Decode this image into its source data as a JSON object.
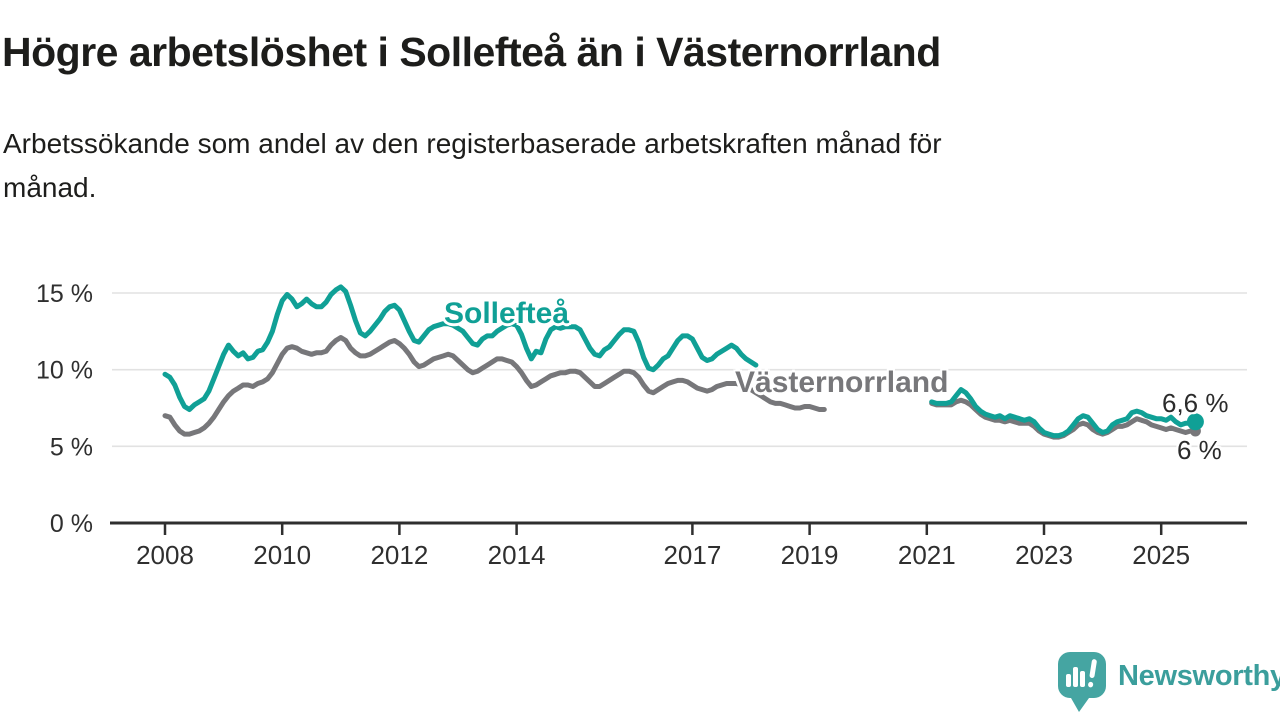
{
  "header": {
    "title": "Högre arbetslöshet i Sollefteå än i Västernorrland",
    "subtitle_line1": "Arbetssökande som andel av den registerbaserade arbetskraften månad för",
    "subtitle_line2": "månad."
  },
  "footer": {
    "brand": "Newsworthy"
  },
  "colors": {
    "solleftea": "#10A096",
    "vasternorrland": "#77777A",
    "grid": "#e2e2e2",
    "axis": "#2f2f2f",
    "tick_text": "#2f2f2f",
    "logo_teal": "#45a5a2"
  },
  "chart_data": {
    "type": "line",
    "title": "Högre arbetslöshet i Sollefteå än i Västernorrland",
    "subtitle": "Arbetssökande som andel av den registerbaserade arbetskraften månad för månad.",
    "unit": "%",
    "grid": "horizontal",
    "legend_position": "inline-labels",
    "xlim": [
      2007.35,
      2026.45
    ],
    "ylim": [
      0,
      16.5
    ],
    "x_tick_years": [
      2008,
      2010,
      2012,
      2014,
      2017,
      2019,
      2021,
      2023,
      2025
    ],
    "x_tick_labels": [
      "2008",
      "2010",
      "2012",
      "2014",
      "2017",
      "2019",
      "2021",
      "2023",
      "2025"
    ],
    "y_tick_values": [
      0,
      5,
      10,
      15
    ],
    "y_tick_labels": [
      "0 %",
      "5 %",
      "10 %",
      "15 %"
    ],
    "series": [
      {
        "name": "Sollefteå",
        "color": "#10A096",
        "end_label": "6,6 %",
        "end_dot": true,
        "segments": [
          {
            "start": 2008.0,
            "monthly_values": [
              9.7,
              9.5,
              9.0,
              8.2,
              7.6,
              7.4,
              7.7,
              7.9,
              8.1,
              8.6,
              9.4,
              10.2,
              11.0,
              11.6,
              11.2,
              10.9,
              11.1,
              10.7,
              10.8,
              11.2,
              11.3,
              11.8,
              12.5,
              13.6,
              14.5,
              14.9,
              14.6,
              14.1,
              14.3,
              14.6,
              14.3,
              14.1,
              14.1,
              14.4,
              14.9,
              15.2,
              15.4,
              15.1,
              14.2,
              13.2,
              12.4,
              12.2,
              12.5,
              12.9,
              13.3,
              13.8,
              14.1,
              14.2,
              13.9,
              13.2,
              12.5,
              11.9,
              11.8,
              12.2,
              12.6,
              12.8,
              12.9,
              13.0,
              13.0,
              12.9,
              12.7,
              12.5,
              12.1,
              11.7,
              11.6,
              12.0,
              12.2,
              12.2,
              12.5,
              12.7,
              12.9,
              13.0,
              12.9,
              12.3,
              11.4,
              10.7,
              11.2,
              11.1,
              12.0,
              12.6,
              12.8,
              12.7,
              12.8,
              12.8,
              12.8,
              12.6,
              12.0,
              11.4,
              11.0,
              10.9,
              11.3,
              11.5,
              11.9,
              12.3,
              12.6,
              12.6,
              12.5,
              11.8,
              10.8,
              10.1,
              10.0,
              10.3,
              10.7,
              10.9,
              11.4,
              11.9,
              12.2,
              12.2,
              12.0,
              11.4,
              10.8,
              10.6,
              10.7,
              11.0,
              11.2,
              11.4,
              11.6,
              11.4,
              11.0,
              10.7,
              10.5,
              10.3
            ]
          },
          {
            "start": 2021.083,
            "monthly_values": [
              7.9,
              7.8,
              7.8,
              7.8,
              7.9,
              8.3,
              8.7,
              8.5,
              8.1,
              7.6,
              7.3,
              7.1,
              7.0,
              6.9,
              7.0,
              6.8,
              7.0,
              6.9,
              6.8,
              6.7,
              6.8,
              6.6,
              6.2,
              5.9,
              5.8,
              5.7,
              5.7,
              5.8,
              6.0,
              6.4,
              6.8,
              7.0,
              6.9,
              6.5,
              6.1,
              5.9,
              6.0,
              6.4,
              6.6,
              6.7,
              6.8,
              7.2,
              7.3,
              7.2,
              7.0,
              6.9,
              6.8,
              6.8,
              6.7,
              6.9,
              6.6,
              6.4,
              6.5,
              6.5,
              6.6
            ]
          }
        ]
      },
      {
        "name": "Västernorrland",
        "color": "#77777A",
        "end_label": "6 %",
        "end_dot": true,
        "segments": [
          {
            "start": 2008.0,
            "monthly_values": [
              7.0,
              6.9,
              6.4,
              6.0,
              5.8,
              5.8,
              5.9,
              6.0,
              6.2,
              6.5,
              6.9,
              7.4,
              7.9,
              8.3,
              8.6,
              8.8,
              9.0,
              9.0,
              8.9,
              9.1,
              9.2,
              9.4,
              9.8,
              10.4,
              11.0,
              11.4,
              11.5,
              11.4,
              11.2,
              11.1,
              11.0,
              11.1,
              11.1,
              11.2,
              11.6,
              11.9,
              12.1,
              11.9,
              11.4,
              11.1,
              10.9,
              10.9,
              11.0,
              11.2,
              11.4,
              11.6,
              11.8,
              11.9,
              11.7,
              11.4,
              11.0,
              10.5,
              10.2,
              10.3,
              10.5,
              10.7,
              10.8,
              10.9,
              11.0,
              10.9,
              10.6,
              10.3,
              10.0,
              9.8,
              9.9,
              10.1,
              10.3,
              10.5,
              10.7,
              10.7,
              10.6,
              10.5,
              10.2,
              9.8,
              9.3,
              8.9,
              9.0,
              9.2,
              9.4,
              9.6,
              9.7,
              9.8,
              9.8,
              9.9,
              9.9,
              9.8,
              9.5,
              9.2,
              8.9,
              8.9,
              9.1,
              9.3,
              9.5,
              9.7,
              9.9,
              9.9,
              9.8,
              9.5,
              9.0,
              8.6,
              8.5,
              8.7,
              8.9,
              9.1,
              9.2,
              9.3,
              9.3,
              9.2,
              9.0,
              8.8,
              8.7,
              8.6,
              8.7,
              8.9,
              9.0,
              9.1,
              9.1,
              9.1,
              9.0,
              8.9,
              8.7,
              8.5,
              8.3,
              8.1,
              7.9,
              7.8,
              7.8,
              7.7,
              7.6,
              7.5,
              7.5,
              7.6,
              7.6,
              7.5,
              7.4,
              7.4
            ]
          },
          {
            "start": 2021.083,
            "monthly_values": [
              7.8,
              7.7,
              7.7,
              7.7,
              7.7,
              7.9,
              8.0,
              7.9,
              7.7,
              7.4,
              7.1,
              6.9,
              6.8,
              6.7,
              6.7,
              6.6,
              6.7,
              6.6,
              6.5,
              6.5,
              6.5,
              6.3,
              6.0,
              5.8,
              5.7,
              5.6,
              5.6,
              5.7,
              5.9,
              6.1,
              6.4,
              6.5,
              6.4,
              6.1,
              5.9,
              5.8,
              5.9,
              6.1,
              6.3,
              6.3,
              6.4,
              6.6,
              6.8,
              6.7,
              6.6,
              6.4,
              6.3,
              6.2,
              6.1,
              6.2,
              6.1,
              6.0,
              5.9,
              6.0,
              6.0
            ]
          }
        ]
      }
    ]
  }
}
